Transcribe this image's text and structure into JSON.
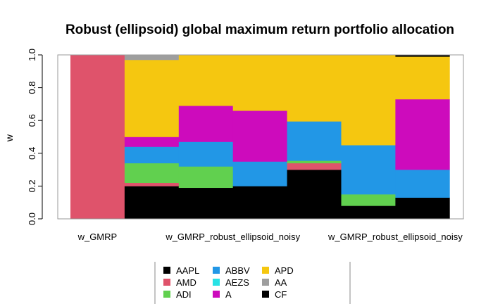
{
  "chart_data": {
    "type": "bar",
    "stacked": true,
    "title": "Robust (ellipsoid) global maximum return portfolio allocation",
    "xlabel": "",
    "ylabel": "w",
    "ylim": [
      0,
      1
    ],
    "yticks": [
      "0.0",
      "0.2",
      "0.4",
      "0.6",
      "0.8",
      "1.0"
    ],
    "x_tick_labels": [
      "w_GMRP",
      "w_GMRP_robust_ellipsoid_noisy",
      "w_GMRP_robust_ellipsoid_noisy"
    ],
    "x_tick_positions": [
      0,
      2.5,
      5.5
    ],
    "n_bars": 7,
    "legend_placement": "bottom",
    "series": [
      {
        "name": "AAPL",
        "color": "#000000",
        "values": [
          0.0,
          0.2,
          0.19,
          0.2,
          0.3,
          0.08,
          0.13
        ]
      },
      {
        "name": "AMD",
        "color": "#DF536B",
        "values": [
          1.0,
          0.02,
          0.0,
          0.0,
          0.04,
          0.0,
          0.0
        ]
      },
      {
        "name": "ADI",
        "color": "#61D04F",
        "values": [
          0.0,
          0.12,
          0.13,
          0.0,
          0.015,
          0.07,
          0.0
        ]
      },
      {
        "name": "ABBV",
        "color": "#2297E6",
        "values": [
          0.0,
          0.1,
          0.15,
          0.15,
          0.24,
          0.3,
          0.17
        ]
      },
      {
        "name": "AEZS",
        "color": "#28E2E5",
        "values": [
          0.0,
          0.0,
          0.0,
          0.0,
          0.0,
          0.0,
          0.0
        ]
      },
      {
        "name": "A",
        "color": "#CD0BBC",
        "values": [
          0.0,
          0.06,
          0.22,
          0.31,
          0.0,
          0.0,
          0.43
        ]
      },
      {
        "name": "APD",
        "color": "#F5C710",
        "values": [
          0.0,
          0.47,
          0.31,
          0.34,
          0.405,
          0.55,
          0.26
        ]
      },
      {
        "name": "AA",
        "color": "#9E9E9E",
        "values": [
          0.0,
          0.03,
          0.0,
          0.0,
          0.0,
          0.0,
          0.0
        ]
      },
      {
        "name": "CF",
        "color": "#000000",
        "values": [
          0.0,
          0.0,
          0.0,
          0.0,
          0.0,
          0.0,
          0.01
        ]
      }
    ]
  }
}
